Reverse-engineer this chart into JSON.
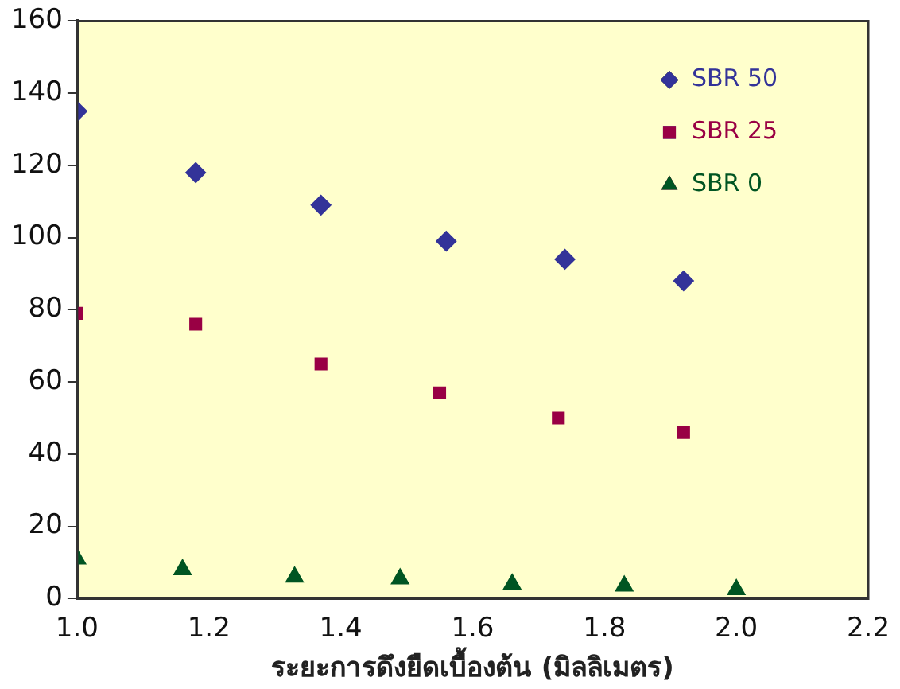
{
  "chart_data": {
    "type": "scatter",
    "xlabel": "ระยะการดึงยืดเบื้องต้น (มิลลิเมตร)",
    "xlim": [
      1.0,
      2.2
    ],
    "xticks": [
      {
        "value": 1.0,
        "label": "1.0"
      },
      {
        "value": 1.2,
        "label": "1.2"
      },
      {
        "value": 1.4,
        "label": "1.4"
      },
      {
        "value": 1.6,
        "label": "1.6"
      },
      {
        "value": 1.8,
        "label": "1.8"
      },
      {
        "value": 2.0,
        "label": "2.0"
      },
      {
        "value": 2.2,
        "label": "2.2"
      }
    ],
    "ylim": [
      0,
      160
    ],
    "yticks": [
      0,
      20,
      40,
      60,
      80,
      100,
      120,
      140,
      160
    ],
    "grid": false,
    "legend": "top right",
    "series": [
      {
        "name": "SBR 50",
        "color": "#333399",
        "marker": "diamond",
        "x": [
          1.0,
          1.18,
          1.37,
          1.56,
          1.74,
          1.92
        ],
        "values": [
          135,
          118,
          109,
          99,
          94,
          88
        ]
      },
      {
        "name": "SBR 25",
        "color": "#990044",
        "marker": "square",
        "x": [
          1.0,
          1.18,
          1.37,
          1.55,
          1.73,
          1.92
        ],
        "values": [
          79,
          76,
          65,
          57,
          50,
          46
        ]
      },
      {
        "name": "SBR 0",
        "color": "#005522",
        "marker": "triangle",
        "x": [
          1.0,
          1.16,
          1.33,
          1.49,
          1.66,
          1.83,
          2.0
        ],
        "values": [
          11,
          8,
          6,
          5.5,
          4,
          3.5,
          2.5
        ]
      }
    ]
  }
}
